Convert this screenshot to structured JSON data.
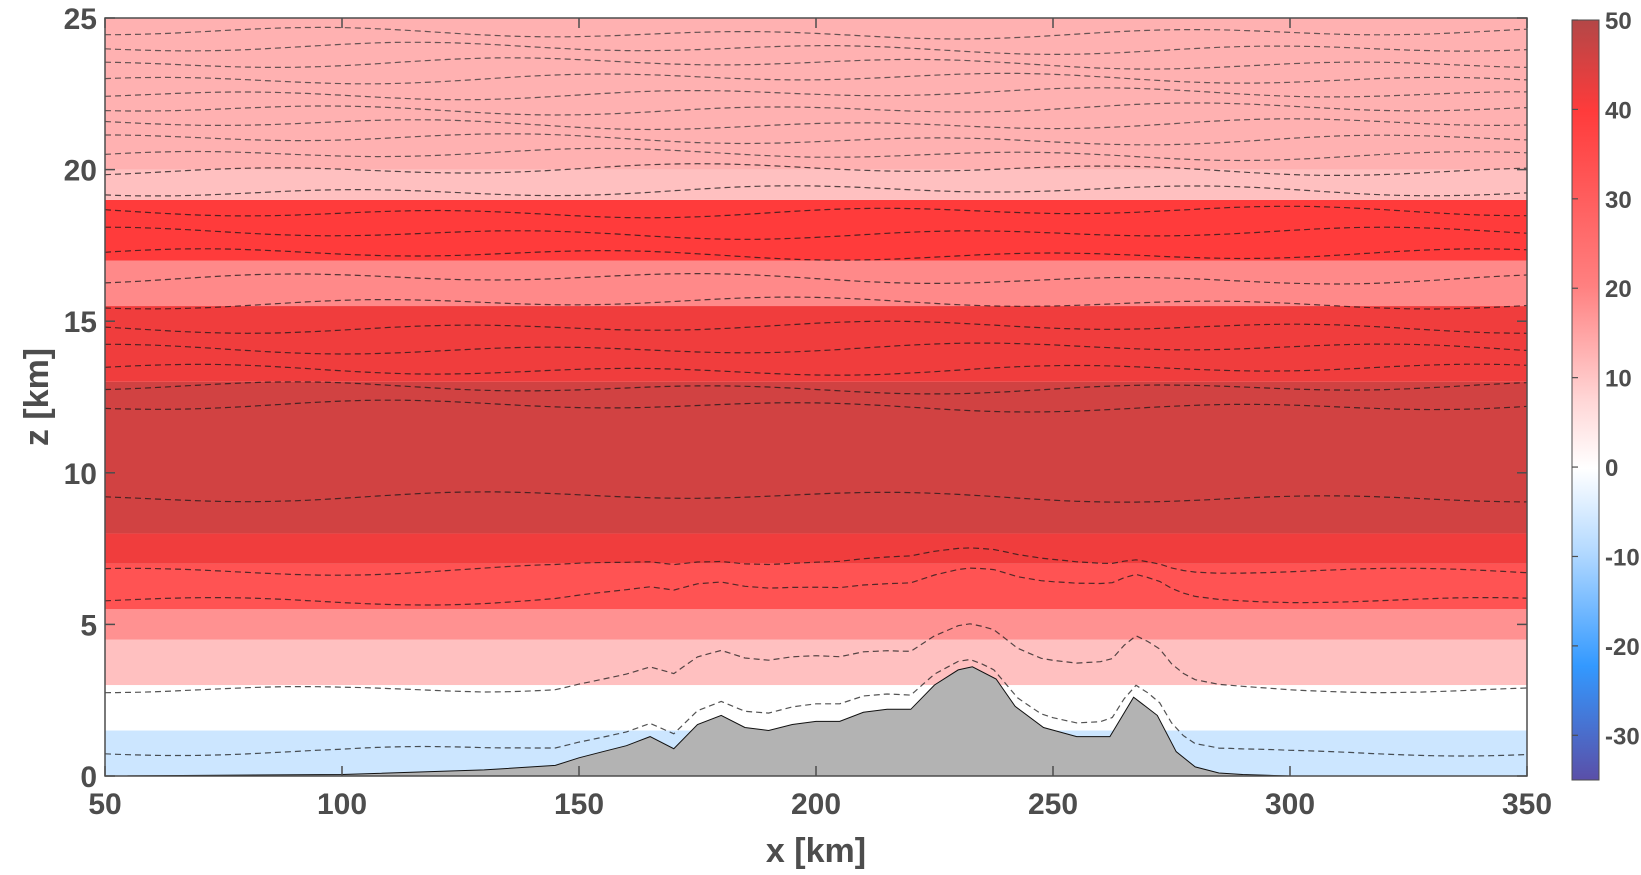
{
  "chart_data": {
    "type": "heatmap",
    "title": "",
    "xlabel": "x [km]",
    "ylabel": "z [km]",
    "xlim": [
      50,
      350
    ],
    "ylim": [
      0,
      25
    ],
    "xticks": [
      "50",
      "100",
      "150",
      "200",
      "250",
      "300",
      "350"
    ],
    "yticks": [
      "0",
      "5",
      "10",
      "15",
      "20",
      "25"
    ],
    "colorbar": {
      "ticks": [
        "50",
        "40",
        "30",
        "20",
        "10",
        "0",
        "-10",
        "-20",
        "-30"
      ],
      "range": [
        -35,
        50
      ],
      "colors": {
        "min": "#5a4fa8",
        "neg": "#3399ff",
        "zero": "#ffffff",
        "pos": "#ff3b3b",
        "max": "#b34747"
      }
    },
    "grid": false,
    "legend": "none",
    "terrain": {
      "color": "#b3b3b3",
      "x": [
        50,
        100,
        130,
        145,
        150,
        155,
        160,
        165,
        170,
        175,
        180,
        185,
        190,
        195,
        200,
        205,
        210,
        215,
        220,
        225,
        230,
        233,
        238,
        242,
        248,
        255,
        262,
        267,
        272,
        276,
        280,
        285,
        290,
        300,
        350
      ],
      "z": [
        0,
        0.05,
        0.2,
        0.35,
        0.6,
        0.8,
        1.0,
        1.3,
        0.9,
        1.7,
        2.0,
        1.6,
        1.5,
        1.7,
        1.8,
        1.8,
        2.1,
        2.2,
        2.2,
        3.0,
        3.5,
        3.6,
        3.2,
        2.3,
        1.6,
        1.3,
        1.3,
        2.6,
        2.0,
        0.8,
        0.3,
        0.1,
        0.05,
        0,
        0
      ]
    },
    "field_bands": [
      {
        "z": [
          0,
          1.5
        ],
        "value": -5
      },
      {
        "z": [
          1.5,
          3
        ],
        "value": 0
      },
      {
        "z": [
          3,
          4.5
        ],
        "value": 8
      },
      {
        "z": [
          4.5,
          5.5
        ],
        "value": 14
      },
      {
        "z": [
          5.5,
          7
        ],
        "value": 22
      },
      {
        "z": [
          7,
          8
        ],
        "value": 30
      },
      {
        "z": [
          8,
          13
        ],
        "value": 40
      },
      {
        "z": [
          13,
          15.5
        ],
        "value": 30
      },
      {
        "z": [
          15.5,
          17
        ],
        "value": 15
      },
      {
        "z": [
          17,
          19
        ],
        "value": 25
      },
      {
        "z": [
          19,
          20
        ],
        "value": 8
      },
      {
        "z": [
          20,
          25
        ],
        "value": 10
      }
    ],
    "contour_levels_z": [
      0.7,
      2.8,
      5.8,
      6.8,
      9.2,
      12.2,
      12.8,
      13.4,
      14.1,
      14.8,
      15.6,
      16.4,
      17.2,
      17.9,
      18.6,
      19.3,
      20.0,
      20.5,
      21.0,
      21.5,
      22.0,
      22.5,
      23.0,
      23.5,
      24.0,
      24.5
    ]
  }
}
